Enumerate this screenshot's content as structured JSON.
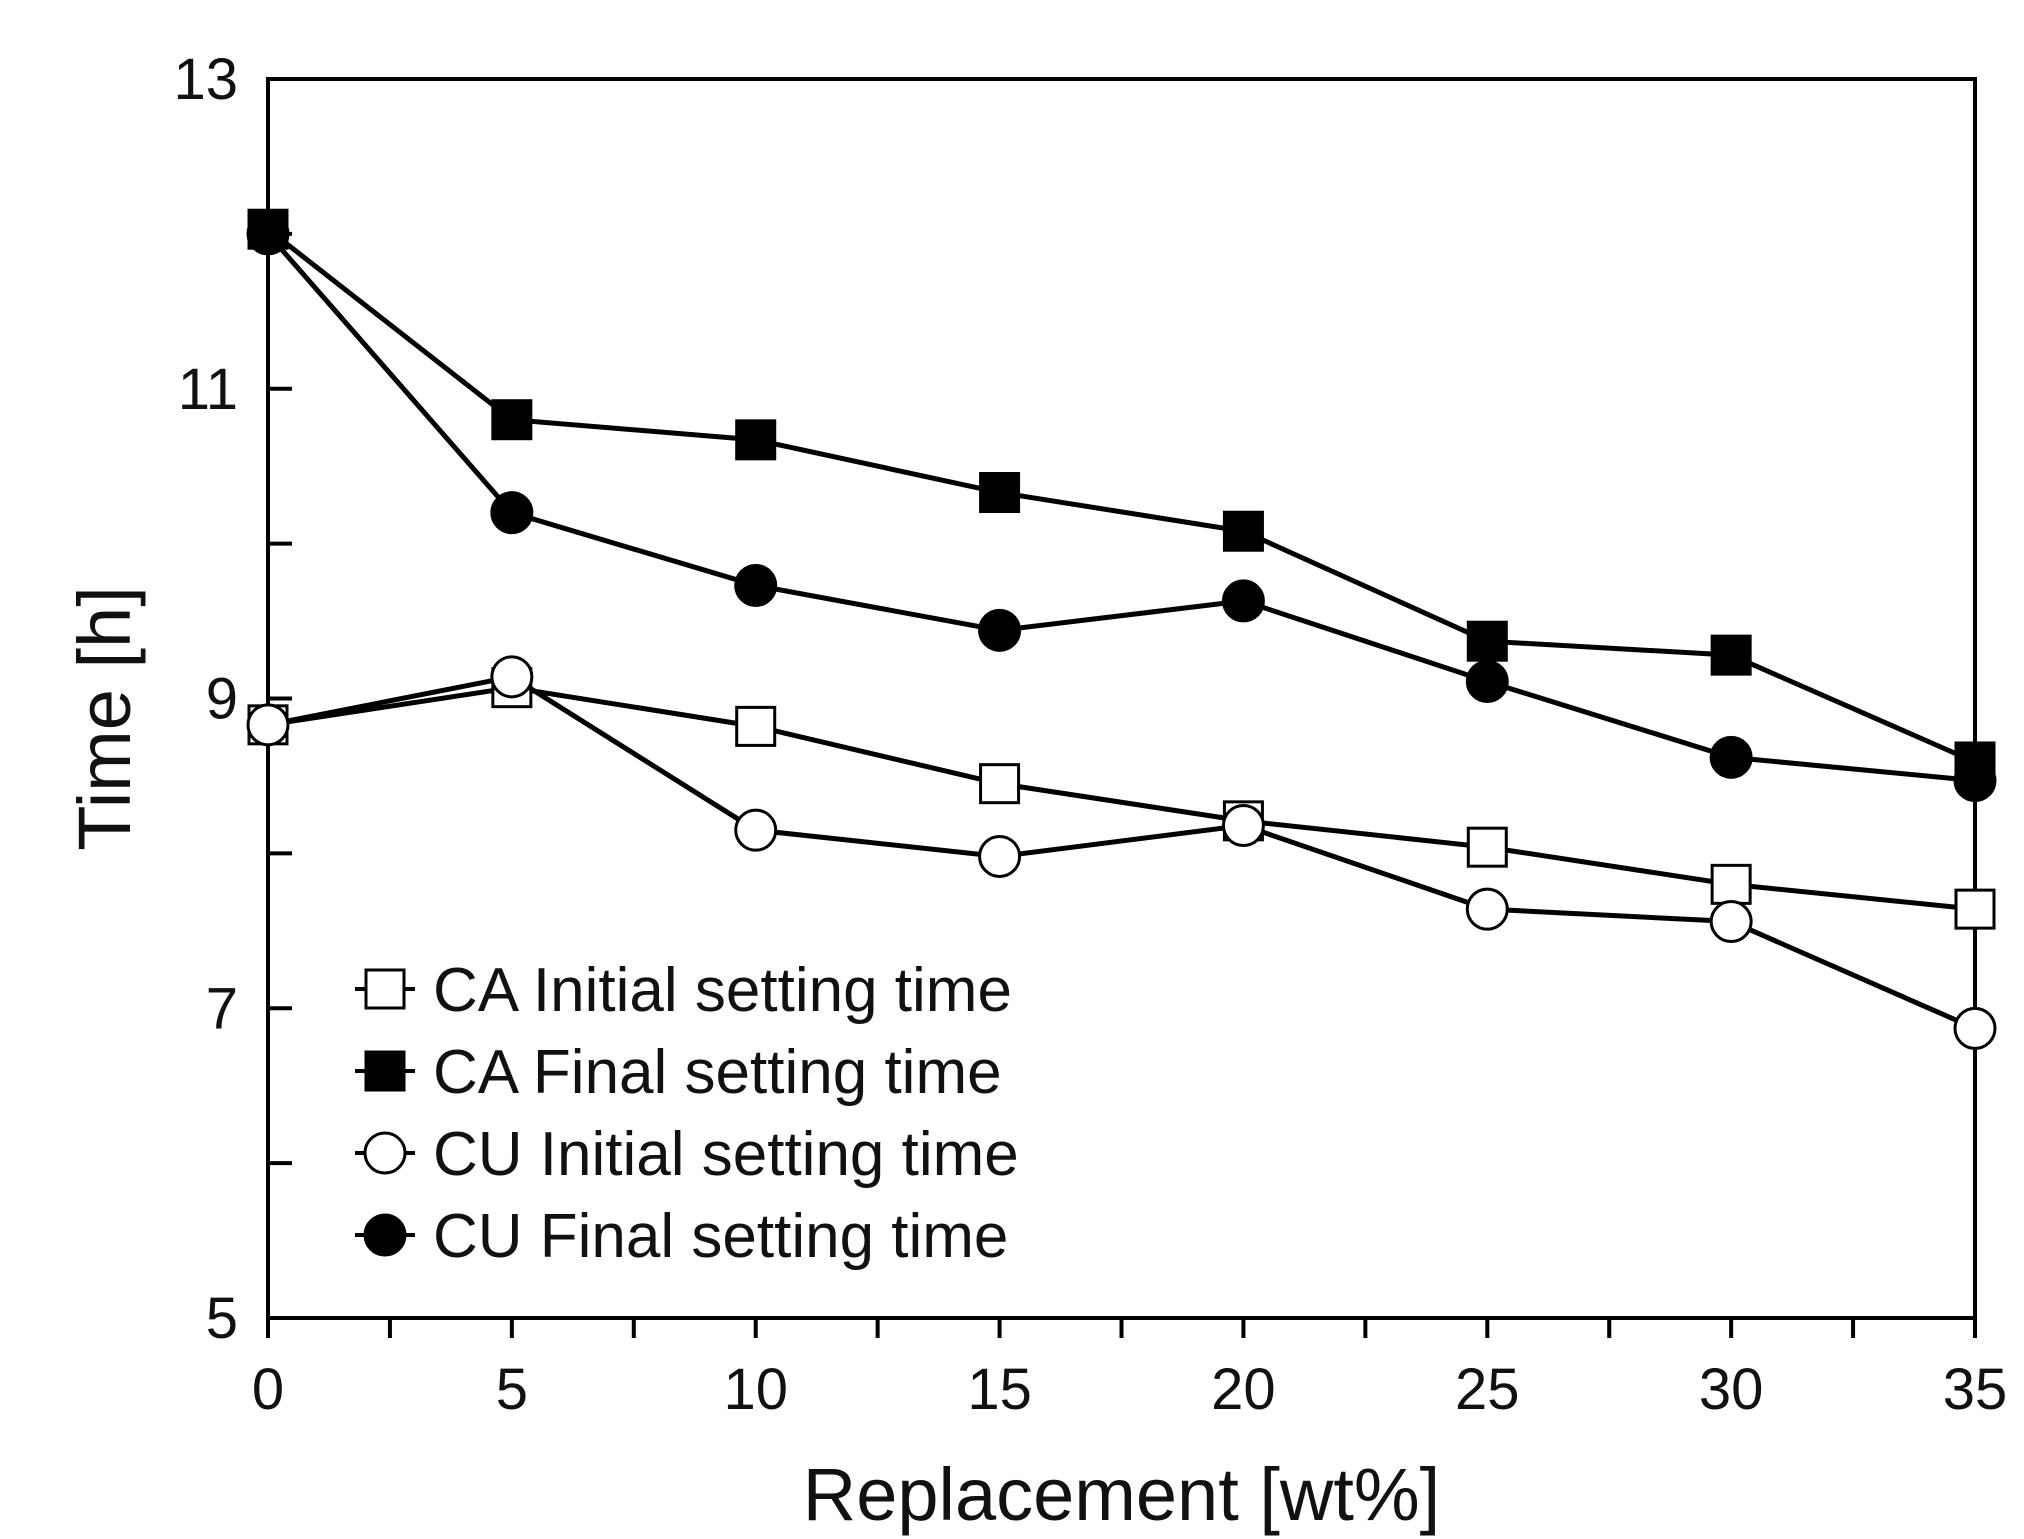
{
  "chart_data": {
    "type": "line",
    "xlabel": "Replacement [wt%]",
    "ylabel": "Time [h]",
    "xlim": [
      0,
      35
    ],
    "ylim": [
      5,
      13
    ],
    "x": [
      0,
      5,
      10,
      15,
      20,
      25,
      30,
      35
    ],
    "xticks": [
      0,
      5,
      10,
      15,
      20,
      25,
      30,
      35
    ],
    "xticks_minor": [
      2.5,
      7.5,
      12.5,
      17.5,
      22.5,
      27.5,
      32.5
    ],
    "yticks_labeled": [
      5,
      7,
      9,
      11,
      13
    ],
    "yticks_minor": [
      6,
      8,
      10,
      12
    ],
    "grid": false,
    "legend_position": "bottom-left",
    "series": [
      {
        "name": "CA Initial setting time",
        "marker": "square-open",
        "values": [
          8.83,
          9.07,
          8.82,
          8.45,
          8.21,
          8.04,
          7.8,
          7.64
        ]
      },
      {
        "name": "CA Final setting time",
        "marker": "square-filled",
        "values": [
          12.03,
          10.8,
          10.67,
          10.33,
          10.08,
          9.37,
          9.28,
          8.59
        ]
      },
      {
        "name": "CU Initial setting time",
        "marker": "circle-open",
        "values": [
          8.83,
          9.14,
          8.15,
          7.98,
          8.18,
          7.64,
          7.56,
          6.87
        ]
      },
      {
        "name": "CU Final setting time",
        "marker": "circle-filled",
        "values": [
          12.0,
          10.2,
          9.73,
          9.44,
          9.63,
          9.11,
          8.62,
          8.47
        ]
      }
    ]
  }
}
